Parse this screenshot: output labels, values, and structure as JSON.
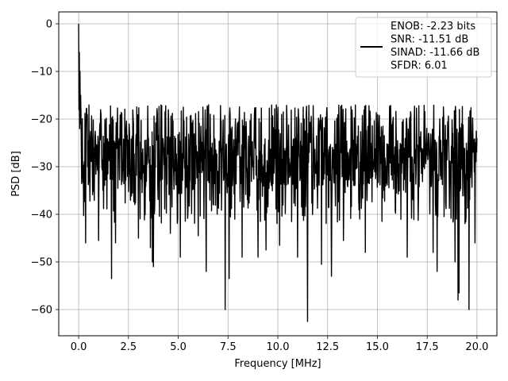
{
  "chart_data": {
    "type": "line",
    "xlabel": "Frequency [MHz]",
    "ylabel": "PSD [dB]",
    "xlim": [
      -1.0,
      21.0
    ],
    "ylim": [
      -65.5,
      2.5
    ],
    "x_ticks": [
      0.0,
      2.5,
      5.0,
      7.5,
      10.0,
      12.5,
      15.0,
      17.5,
      20.0
    ],
    "x_tick_labels": [
      "0.0",
      "2.5",
      "5.0",
      "7.5",
      "10.0",
      "12.5",
      "15.0",
      "17.5",
      "20.0"
    ],
    "y_ticks": [
      0,
      -10,
      -20,
      -30,
      -40,
      -50,
      -60
    ],
    "y_tick_labels": [
      "0",
      "−10",
      "−20",
      "−30",
      "−40",
      "−50",
      "−60"
    ],
    "grid": true,
    "legend_position": "top-right",
    "legend": [
      "ENOB: -2.23 bits",
      "SNR: -11.51 dB",
      "SINAD: -11.66 dB",
      "SFDR: 6.01"
    ],
    "series": [
      {
        "color": "#000000",
        "x_range": [
          0.0,
          20.0
        ],
        "num_points": 1200,
        "start_values": [
          0.0,
          -18.0,
          -6.0,
          -22.0,
          -10.0,
          -21.0,
          -15.0
        ],
        "envelope": {
          "upper_db": -17.0,
          "lower_db": -42.0,
          "median_db": -29.0
        },
        "dips": [
          {
            "x": 0.35,
            "y": -46.0
          },
          {
            "x": 1.0,
            "y": -45.5
          },
          {
            "x": 1.65,
            "y": -53.5
          },
          {
            "x": 1.85,
            "y": -46.0
          },
          {
            "x": 3.0,
            "y": -45.0
          },
          {
            "x": 3.6,
            "y": -47.0
          },
          {
            "x": 3.7,
            "y": -50.0
          },
          {
            "x": 3.75,
            "y": -51.0
          },
          {
            "x": 4.6,
            "y": -44.0
          },
          {
            "x": 5.1,
            "y": -49.0
          },
          {
            "x": 6.0,
            "y": -44.5
          },
          {
            "x": 6.4,
            "y": -52.0
          },
          {
            "x": 7.35,
            "y": -60.0
          },
          {
            "x": 7.55,
            "y": -53.5
          },
          {
            "x": 8.2,
            "y": -49.0
          },
          {
            "x": 9.0,
            "y": -49.0
          },
          {
            "x": 9.4,
            "y": -47.5
          },
          {
            "x": 10.1,
            "y": -46.5
          },
          {
            "x": 11.0,
            "y": -49.0
          },
          {
            "x": 11.5,
            "y": -62.5
          },
          {
            "x": 12.2,
            "y": -50.5
          },
          {
            "x": 12.7,
            "y": -53.0
          },
          {
            "x": 13.3,
            "y": -45.5
          },
          {
            "x": 14.4,
            "y": -48.0
          },
          {
            "x": 16.5,
            "y": -49.0
          },
          {
            "x": 17.8,
            "y": -48.0
          },
          {
            "x": 18.0,
            "y": -52.0
          },
          {
            "x": 18.9,
            "y": -50.0
          },
          {
            "x": 19.05,
            "y": -58.0
          },
          {
            "x": 19.1,
            "y": -56.5
          },
          {
            "x": 19.6,
            "y": -60.0
          },
          {
            "x": 19.9,
            "y": -46.0
          }
        ]
      }
    ]
  }
}
